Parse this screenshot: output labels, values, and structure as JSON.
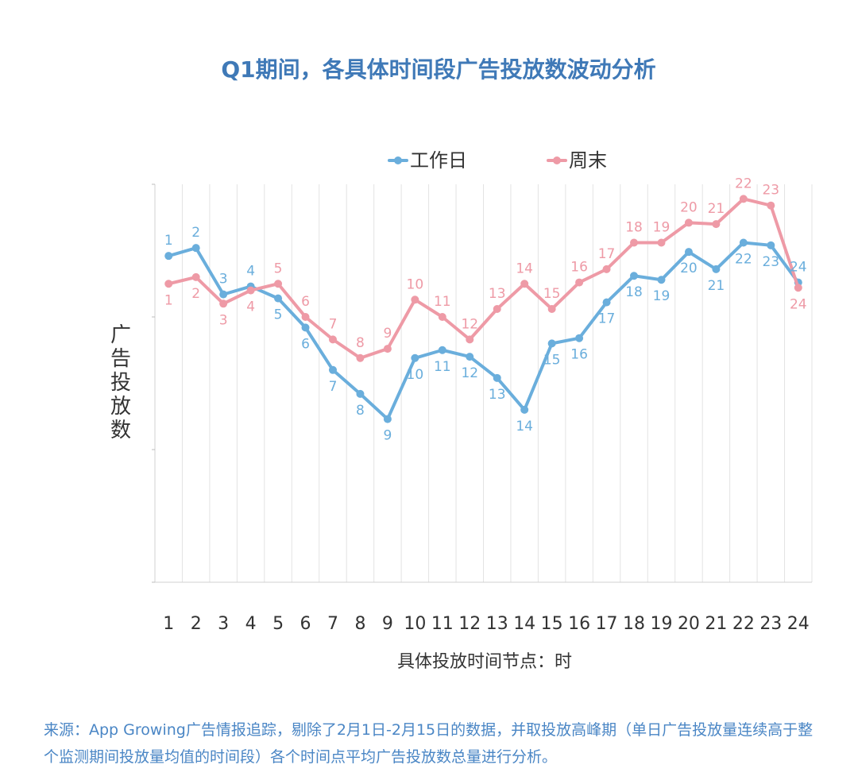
{
  "colors": {
    "title": "#3f79b7",
    "workday": "#6aaedc",
    "weekend": "#ee9aa6",
    "grid": "#e3e3e3",
    "source": "#4a86c5"
  },
  "chart_data": {
    "type": "line",
    "title": "Q1期间，各具体时间段广告投放数波动分析",
    "xlabel": "具体投放时间节点：时",
    "ylabel": "广告投放数",
    "categories": [
      "1",
      "2",
      "3",
      "4",
      "5",
      "6",
      "7",
      "8",
      "9",
      "10",
      "11",
      "12",
      "13",
      "14",
      "15",
      "16",
      "17",
      "18",
      "19",
      "20",
      "21",
      "22",
      "23",
      "24"
    ],
    "ylim": [
      0,
      300
    ],
    "yticks": [
      0,
      100,
      200,
      300
    ],
    "grid": true,
    "legend_position": "top",
    "series": [
      {
        "name": "工作日",
        "color_key": "workday",
        "values": [
          246,
          252,
          217,
          223,
          214,
          192,
          160,
          142,
          123,
          169,
          175,
          170,
          154,
          130,
          180,
          184,
          211,
          231,
          228,
          249,
          236,
          256,
          254,
          226
        ],
        "labels": [
          "1",
          "2",
          "3",
          "4",
          "5",
          "6",
          "7",
          "8",
          "9",
          "10",
          "11",
          "12",
          "13",
          "14",
          "15",
          "16",
          "17",
          "18",
          "19",
          "20",
          "21",
          "22",
          "23",
          "24"
        ]
      },
      {
        "name": "周末",
        "color_key": "weekend",
        "values": [
          225,
          230,
          210,
          220,
          225,
          200,
          183,
          169,
          176,
          213,
          200,
          183,
          206,
          225,
          206,
          226,
          236,
          256,
          256,
          271,
          270,
          289,
          284,
          222
        ],
        "labels": [
          "1",
          "2",
          "3",
          "4",
          "5",
          "6",
          "7",
          "8",
          "9",
          "10",
          "11",
          "12",
          "13",
          "14",
          "15",
          "16",
          "17",
          "18",
          "19",
          "20",
          "21",
          "22",
          "23",
          "24"
        ]
      }
    ]
  },
  "source_text": "来源：App Growing广告情报追踪，剔除了2月1日-2月15日的数据，并取投放高峰期（单日广告投放量连续高于整个监测期间投放量均值的时间段）各个时间点平均广告投放数总量进行分析。"
}
